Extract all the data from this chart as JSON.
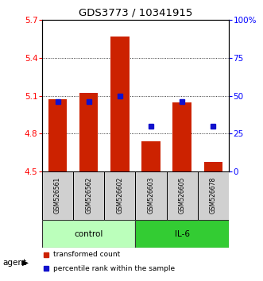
{
  "title": "GDS3773 / 10341915",
  "samples": [
    "GSM526561",
    "GSM526562",
    "GSM526602",
    "GSM526603",
    "GSM526605",
    "GSM526678"
  ],
  "bar_values": [
    5.07,
    5.12,
    5.57,
    4.74,
    5.05,
    4.58
  ],
  "bar_bottom": 4.5,
  "percentile_values": [
    46,
    46,
    50,
    30,
    46,
    30
  ],
  "bar_color": "#cc2200",
  "percentile_color": "#1111cc",
  "ylim": [
    4.5,
    5.7
  ],
  "yticks": [
    4.5,
    4.8,
    5.1,
    5.4,
    5.7
  ],
  "y2lim": [
    0,
    100
  ],
  "y2ticks": [
    0,
    25,
    50,
    75,
    100
  ],
  "y2ticklabels": [
    "0",
    "25",
    "50",
    "75",
    "100%"
  ],
  "control_color": "#bbffbb",
  "il6_color": "#33cc33",
  "ylabel_color": "red",
  "y2label_color": "blue",
  "legend_bar_label": "transformed count",
  "legend_pct_label": "percentile rank within the sample"
}
